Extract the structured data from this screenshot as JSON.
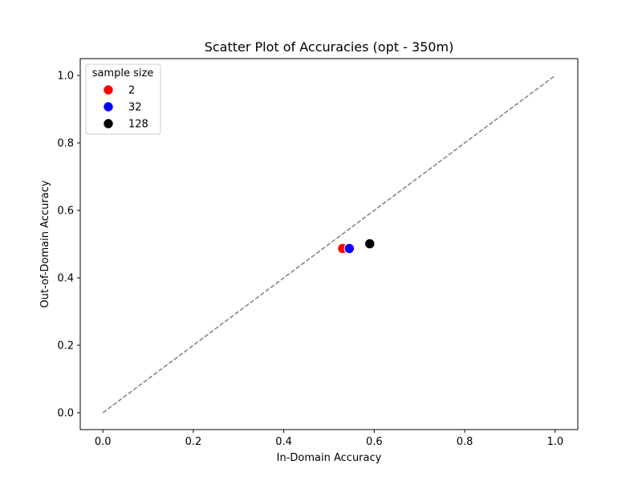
{
  "chart_data": {
    "type": "scatter",
    "title": "Scatter Plot of Accuracies (opt - 350m)",
    "xlabel": "In-Domain Accuracy",
    "ylabel": "Out-of-Domain Accuracy",
    "xlim": [
      -0.05,
      1.05
    ],
    "ylim": [
      -0.05,
      1.05
    ],
    "xticks": [
      0.0,
      0.2,
      0.4,
      0.6,
      0.8,
      1.0
    ],
    "yticks": [
      0.0,
      0.2,
      0.4,
      0.6,
      0.8,
      1.0
    ],
    "xtick_labels": [
      "0.0",
      "0.2",
      "0.4",
      "0.6",
      "0.8",
      "1.0"
    ],
    "ytick_labels": [
      "0.0",
      "0.2",
      "0.4",
      "0.6",
      "0.8",
      "1.0"
    ],
    "grid": false,
    "reference_line": {
      "x": [
        0,
        1
      ],
      "y": [
        0,
        1
      ],
      "style": "dashed",
      "color": "#808080"
    },
    "legend": {
      "title": "sample size",
      "placement": "top-left",
      "entries": [
        "2",
        "32",
        "128"
      ]
    },
    "series": [
      {
        "name": "2",
        "color": "#ff0000",
        "points": [
          {
            "x": 0.53,
            "y": 0.487
          }
        ]
      },
      {
        "name": "32",
        "color": "#0000ff",
        "points": [
          {
            "x": 0.545,
            "y": 0.487
          }
        ]
      },
      {
        "name": "128",
        "color": "#000000",
        "points": [
          {
            "x": 0.59,
            "y": 0.501
          }
        ]
      }
    ]
  }
}
